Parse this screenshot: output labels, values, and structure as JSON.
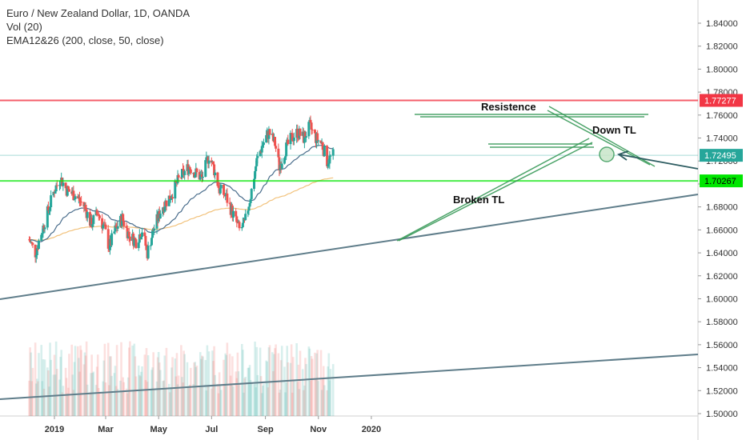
{
  "legend": {
    "title": "Euro / New Zealand Dollar, 1D, OANDA",
    "vol": "Vol (20)",
    "ema": "EMA12&26 (200, close, 50, close)"
  },
  "chart_data": {
    "type": "candlestick",
    "title": "Euro / New Zealand Dollar, 1D, OANDA",
    "ylim": [
      1.5,
      1.85
    ],
    "y_ticks": [
      "1.84000",
      "1.82000",
      "1.80000",
      "1.78000",
      "1.76000",
      "1.74000",
      "1.72000",
      "1.70000",
      "1.68000",
      "1.66000",
      "1.64000",
      "1.62000",
      "1.60000",
      "1.58000",
      "1.56000",
      "1.54000",
      "1.52000",
      "1.50000"
    ],
    "y_tick_values": [
      1.84,
      1.82,
      1.8,
      1.78,
      1.76,
      1.74,
      1.72,
      1.7,
      1.68,
      1.66,
      1.64,
      1.62,
      1.6,
      1.58,
      1.56,
      1.54,
      1.52,
      1.5
    ],
    "x_ticks": [
      "2019",
      "Mar",
      "May",
      "Jul",
      "Sep",
      "Nov",
      "2020"
    ],
    "price_key_points": [
      [
        "2018-12-01",
        1.655
      ],
      [
        "2018-12-10",
        1.64
      ],
      [
        "2018-12-20",
        1.665
      ],
      [
        "2019-01-01",
        1.695
      ],
      [
        "2019-01-08",
        1.705
      ],
      [
        "2019-01-15",
        1.695
      ],
      [
        "2019-01-25",
        1.69
      ],
      [
        "2019-02-05",
        1.68
      ],
      [
        "2019-02-12",
        1.665
      ],
      [
        "2019-02-20",
        1.675
      ],
      [
        "2019-02-28",
        1.66
      ],
      [
        "2019-03-05",
        1.645
      ],
      [
        "2019-03-12",
        1.66
      ],
      [
        "2019-03-20",
        1.67
      ],
      [
        "2019-03-28",
        1.655
      ],
      [
        "2019-04-05",
        1.65
      ],
      [
        "2019-04-12",
        1.66
      ],
      [
        "2019-04-18",
        1.64
      ],
      [
        "2019-04-25",
        1.66
      ],
      [
        "2019-05-05",
        1.68
      ],
      [
        "2019-05-15",
        1.69
      ],
      [
        "2019-05-25",
        1.705
      ],
      [
        "2019-06-05",
        1.715
      ],
      [
        "2019-06-12",
        1.71
      ],
      [
        "2019-06-20",
        1.705
      ],
      [
        "2019-06-28",
        1.725
      ],
      [
        "2019-07-03",
        1.715
      ],
      [
        "2019-07-10",
        1.695
      ],
      [
        "2019-07-17",
        1.69
      ],
      [
        "2019-07-25",
        1.675
      ],
      [
        "2019-08-02",
        1.66
      ],
      [
        "2019-08-08",
        1.665
      ],
      [
        "2019-08-15",
        1.69
      ],
      [
        "2019-08-22",
        1.72
      ],
      [
        "2019-08-29",
        1.735
      ],
      [
        "2019-09-05",
        1.745
      ],
      [
        "2019-09-12",
        1.735
      ],
      [
        "2019-09-17",
        1.715
      ],
      [
        "2019-09-24",
        1.73
      ],
      [
        "2019-10-01",
        1.74
      ],
      [
        "2019-10-08",
        1.745
      ],
      [
        "2019-10-15",
        1.74
      ],
      [
        "2019-10-22",
        1.75
      ],
      [
        "2019-10-29",
        1.74
      ],
      [
        "2019-11-05",
        1.735
      ],
      [
        "2019-11-11",
        1.72
      ],
      [
        "2019-11-18",
        1.7249
      ]
    ],
    "series": [
      {
        "name": "EMA 50",
        "color": "#4a6d8c"
      },
      {
        "name": "EMA 200",
        "color": "#f2c27c"
      }
    ],
    "horizontal_levels": [
      {
        "value": 1.77277,
        "label": "1.77277",
        "color": "#f23645"
      },
      {
        "value": 1.70267,
        "label": "1.70267",
        "color": "#00e600"
      },
      {
        "value": 1.72495,
        "label": "1.72495",
        "color": "#26a69a"
      }
    ],
    "annotations": [
      "Resistence",
      "Down TL",
      "Broken TL"
    ],
    "volume": {
      "axis": "overlay",
      "note": "bottom histogram"
    }
  }
}
